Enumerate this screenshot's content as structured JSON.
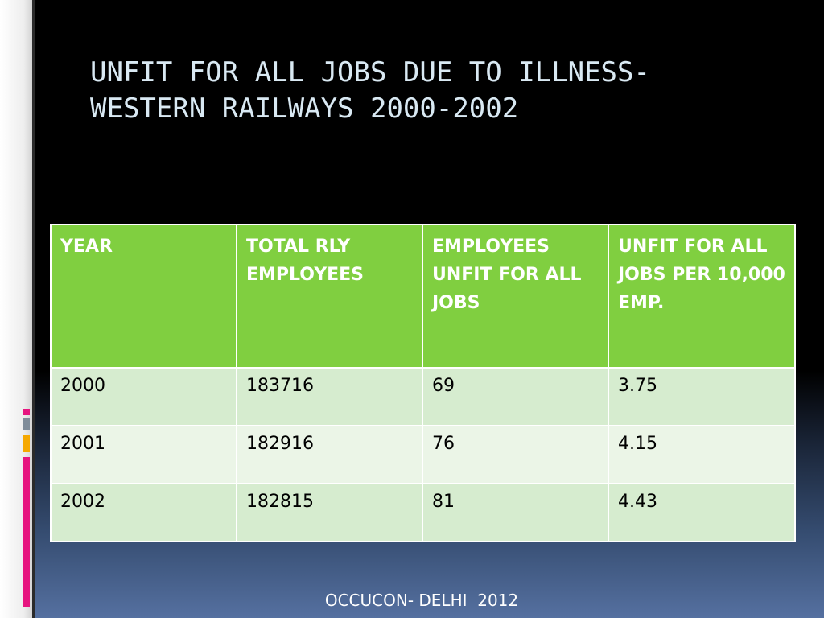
{
  "slide": {
    "title_lines": [
      "UNFIT FOR ALL JOBS DUE TO ILLNESS-",
      "WESTERN RAILWAYS 2000-2002"
    ],
    "footer": "OCCUCON- DELHI  2012"
  },
  "table": {
    "headers": [
      "YEAR",
      "TOTAL RLY EMPLOYEES",
      "EMPLOYEES UNFIT FOR ALL JOBS",
      "UNFIT FOR ALL JOBS PER 10,000 EMP."
    ],
    "rows": [
      [
        "2000",
        "183716",
        "69",
        "3.75"
      ],
      [
        "2001",
        "182916",
        "76",
        "4.15"
      ],
      [
        "2002",
        "182815",
        "81",
        "4.43"
      ]
    ]
  },
  "colors": {
    "header_fill": "#80cf40",
    "row_fill_odd": "#d6eccf",
    "row_fill_even": "#ebf5e7",
    "title_color": "#d9e9f3",
    "accent_pink": "#e6157f",
    "accent_gray": "#7f8c99",
    "accent_orange": "#f5a800"
  }
}
